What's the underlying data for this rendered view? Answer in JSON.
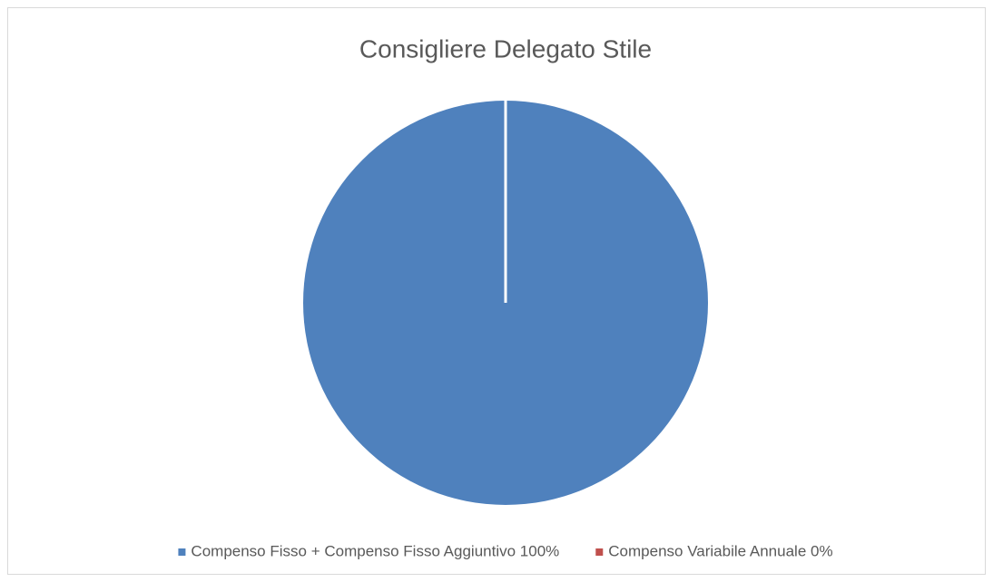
{
  "chart_data": {
    "type": "pie",
    "title": "Consigliere Delegato Stile",
    "categories": [
      "Compenso Fisso + Compenso Fisso Aggiuntivo 100%",
      "Compenso Variabile Annuale 0%"
    ],
    "values": [
      100,
      0
    ],
    "colors": [
      "#4f81bd",
      "#c0504d"
    ],
    "legend": "bottom"
  }
}
